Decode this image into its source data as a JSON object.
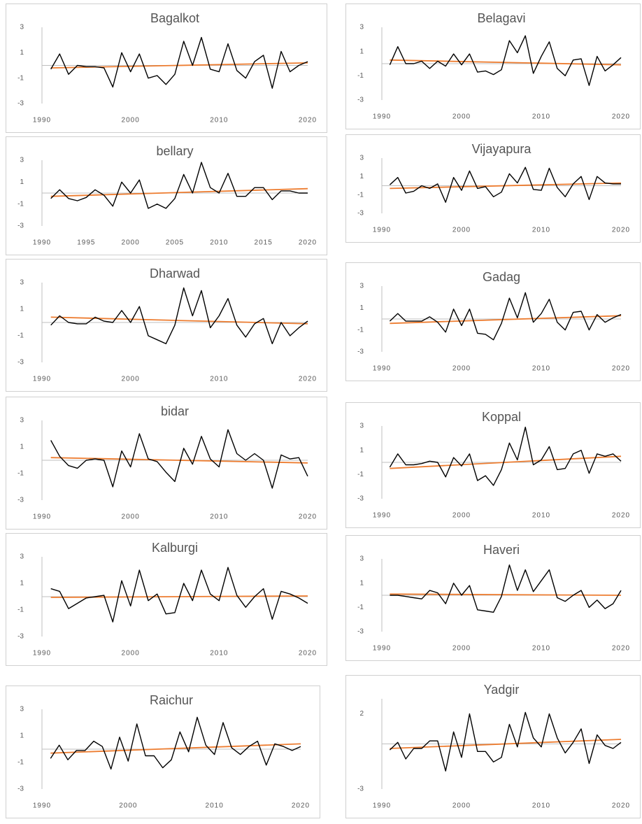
{
  "chart_data": [
    {
      "type": "line",
      "title": "Bagalkot",
      "color": "#000000",
      "x": [
        1991,
        1992,
        1993,
        1994,
        1995,
        1996,
        1997,
        1998,
        1999,
        2000,
        2001,
        2002,
        2003,
        2004,
        2005,
        2006,
        2007,
        2008,
        2009,
        2010,
        2011,
        2012,
        2013,
        2014,
        2015,
        2016,
        2017,
        2018,
        2019,
        2020
      ],
      "values": [
        -0.3,
        0.9,
        -0.7,
        0.0,
        -0.1,
        -0.1,
        -0.2,
        -1.7,
        1.0,
        -0.5,
        0.9,
        -1.0,
        -0.8,
        -1.5,
        -0.7,
        1.9,
        0.0,
        2.2,
        -0.3,
        -0.5,
        1.7,
        -0.4,
        -1.0,
        0.3,
        0.8,
        -1.8,
        1.1,
        -0.5,
        0.0,
        0.3
      ],
      "trend": {
        "color": "#ed7d31",
        "x": [
          1991,
          2020
        ],
        "values": [
          -0.2,
          0.2
        ]
      },
      "xlim": [
        1990,
        2020
      ],
      "ylim": [
        -3,
        3
      ],
      "xticks": [
        1990,
        2000,
        2010,
        2020
      ],
      "yticks": [
        -3,
        -1,
        1,
        3
      ]
    },
    {
      "type": "line",
      "title": "Belagavi",
      "color": "#000000",
      "x": [
        1991,
        1992,
        1993,
        1994,
        1995,
        1996,
        1997,
        1998,
        1999,
        2000,
        2001,
        2002,
        2003,
        2004,
        2005,
        2006,
        2007,
        2008,
        2009,
        2010,
        2011,
        2012,
        2013,
        2014,
        2015,
        2016,
        2017,
        2018,
        2019,
        2020
      ],
      "values": [
        -0.1,
        1.4,
        0.0,
        0.0,
        0.2,
        -0.4,
        0.2,
        -0.2,
        0.8,
        -0.1,
        0.8,
        -0.7,
        -0.6,
        -0.9,
        -0.5,
        1.9,
        0.9,
        2.3,
        -0.8,
        0.6,
        1.8,
        -0.4,
        -1.0,
        0.3,
        0.4,
        -1.8,
        0.6,
        -0.6,
        -0.1,
        0.5
      ],
      "trend": {
        "color": "#ed7d31",
        "x": [
          1991,
          2020
        ],
        "values": [
          0.3,
          -0.1
        ]
      },
      "xlim": [
        1990,
        2020
      ],
      "ylim": [
        -3,
        3
      ],
      "xticks": [
        1990,
        2000,
        2010,
        2020
      ],
      "yticks": [
        -3,
        -1,
        1,
        3
      ]
    },
    {
      "type": "line",
      "title": "bellary",
      "color": "#000000",
      "x": [
        1991,
        1992,
        1993,
        1994,
        1995,
        1996,
        1997,
        1998,
        1999,
        2000,
        2001,
        2002,
        2003,
        2004,
        2005,
        2006,
        2007,
        2008,
        2009,
        2010,
        2011,
        2012,
        2013,
        2014,
        2015,
        2016,
        2017,
        2018,
        2019,
        2020
      ],
      "values": [
        -0.5,
        0.3,
        -0.5,
        -0.7,
        -0.4,
        0.3,
        -0.2,
        -1.2,
        1.0,
        0.0,
        1.2,
        -1.4,
        -1.0,
        -1.4,
        -0.5,
        1.7,
        0.0,
        2.8,
        0.5,
        0.0,
        1.8,
        -0.3,
        -0.3,
        0.5,
        0.5,
        -0.6,
        0.2,
        0.2,
        0.0,
        0.0
      ],
      "trend": {
        "color": "#ed7d31",
        "x": [
          1991,
          2020
        ],
        "values": [
          -0.3,
          0.4
        ]
      },
      "xlim": [
        1990,
        2020
      ],
      "ylim": [
        -3,
        3
      ],
      "xticks": [
        1990,
        1995,
        2000,
        2005,
        2010,
        2015,
        2020
      ],
      "yticks": [
        -3,
        -1,
        1,
        3
      ]
    },
    {
      "type": "line",
      "title": "Vijayapura",
      "color": "#000000",
      "x": [
        1991,
        1992,
        1993,
        1994,
        1995,
        1996,
        1997,
        1998,
        1999,
        2000,
        2001,
        2002,
        2003,
        2004,
        2005,
        2006,
        2007,
        2008,
        2009,
        2010,
        2011,
        2012,
        2013,
        2014,
        2015,
        2016,
        2017,
        2018,
        2019,
        2020
      ],
      "values": [
        0.1,
        0.9,
        -0.8,
        -0.6,
        0.0,
        -0.3,
        0.2,
        -1.8,
        0.9,
        -0.5,
        1.6,
        -0.3,
        -0.1,
        -1.2,
        -0.7,
        1.3,
        0.3,
        2.0,
        -0.4,
        -0.5,
        1.9,
        -0.2,
        -1.2,
        0.2,
        1.0,
        -1.5,
        1.0,
        0.3,
        0.2,
        0.2
      ],
      "trend": {
        "color": "#ed7d31",
        "x": [
          1991,
          2020
        ],
        "values": [
          -0.3,
          0.3
        ]
      },
      "xlim": [
        1990,
        2020
      ],
      "ylim": [
        -3,
        3
      ],
      "xticks": [
        1990,
        2000,
        2010,
        2020
      ],
      "yticks": [
        -3,
        -1,
        1,
        3
      ]
    },
    {
      "type": "line",
      "title": "Dharwad",
      "color": "#000000",
      "x": [
        1991,
        1992,
        1993,
        1994,
        1995,
        1996,
        1997,
        1998,
        1999,
        2000,
        2001,
        2002,
        2003,
        2004,
        2005,
        2006,
        2007,
        2008,
        2009,
        2010,
        2011,
        2012,
        2013,
        2014,
        2015,
        2016,
        2017,
        2018,
        2019,
        2020
      ],
      "values": [
        -0.2,
        0.5,
        0.0,
        -0.1,
        -0.1,
        0.4,
        0.1,
        0.0,
        0.9,
        0.0,
        1.2,
        -1.0,
        -1.3,
        -1.6,
        -0.2,
        2.6,
        0.5,
        2.4,
        -0.4,
        0.5,
        1.8,
        -0.2,
        -1.1,
        -0.1,
        0.3,
        -1.6,
        0.0,
        -1.0,
        -0.4,
        0.1
      ],
      "trend": {
        "color": "#ed7d31",
        "x": [
          1991,
          2020
        ],
        "values": [
          0.4,
          -0.1
        ]
      },
      "xlim": [
        1990,
        2020
      ],
      "ylim": [
        -3,
        3
      ],
      "xticks": [
        1990,
        2000,
        2010,
        2020
      ],
      "yticks": [
        -3,
        -1,
        1,
        3
      ]
    },
    {
      "type": "line",
      "title": "Gadag",
      "color": "#000000",
      "x": [
        1991,
        1992,
        1993,
        1994,
        1995,
        1996,
        1997,
        1998,
        1999,
        2000,
        2001,
        2002,
        2003,
        2004,
        2005,
        2006,
        2007,
        2008,
        2009,
        2010,
        2011,
        2012,
        2013,
        2014,
        2015,
        2016,
        2017,
        2018,
        2019,
        2020
      ],
      "values": [
        -0.2,
        0.5,
        -0.2,
        -0.2,
        -0.2,
        0.2,
        -0.3,
        -1.2,
        0.9,
        -0.6,
        0.9,
        -1.3,
        -1.4,
        -1.9,
        -0.4,
        1.9,
        0.1,
        2.4,
        -0.3,
        0.5,
        1.8,
        -0.3,
        -1.0,
        0.6,
        0.7,
        -1.0,
        0.4,
        -0.3,
        0.1,
        0.4
      ],
      "trend": {
        "color": "#ed7d31",
        "x": [
          1991,
          2020
        ],
        "values": [
          -0.4,
          0.3
        ]
      },
      "xlim": [
        1990,
        2020
      ],
      "ylim": [
        -3,
        3
      ],
      "xticks": [
        1990,
        2000,
        2010,
        2020
      ],
      "yticks": [
        -3,
        -1,
        1,
        3
      ]
    },
    {
      "type": "line",
      "title": "bidar",
      "color": "#000000",
      "x": [
        1991,
        1992,
        1993,
        1994,
        1995,
        1996,
        1997,
        1998,
        1999,
        2000,
        2001,
        2002,
        2003,
        2004,
        2005,
        2006,
        2007,
        2008,
        2009,
        2010,
        2011,
        2012,
        2013,
        2014,
        2015,
        2016,
        2017,
        2018,
        2019,
        2020
      ],
      "values": [
        1.5,
        0.3,
        -0.4,
        -0.6,
        0.0,
        0.1,
        0.0,
        -2.0,
        0.7,
        -0.5,
        2.0,
        0.1,
        -0.1,
        -0.9,
        -1.6,
        0.9,
        -0.3,
        1.8,
        0.1,
        -0.5,
        2.3,
        0.5,
        0.0,
        0.5,
        0.0,
        -2.1,
        0.4,
        0.1,
        0.2,
        -1.2
      ],
      "trend": {
        "color": "#ed7d31",
        "x": [
          1991,
          2020
        ],
        "values": [
          0.2,
          -0.2
        ]
      },
      "xlim": [
        1990,
        2020
      ],
      "ylim": [
        -3,
        3
      ],
      "xticks": [
        1990,
        2000,
        2010,
        2020
      ],
      "yticks": [
        -3,
        -1,
        1,
        3
      ]
    },
    {
      "type": "line",
      "title": "Koppal",
      "color": "#000000",
      "x": [
        1991,
        1992,
        1993,
        1994,
        1995,
        1996,
        1997,
        1998,
        1999,
        2000,
        2001,
        2002,
        2003,
        2004,
        2005,
        2006,
        2007,
        2008,
        2009,
        2010,
        2011,
        2012,
        2013,
        2014,
        2015,
        2016,
        2017,
        2018,
        2019,
        2020
      ],
      "values": [
        -0.4,
        0.7,
        -0.2,
        -0.2,
        -0.1,
        0.1,
        0.0,
        -1.2,
        0.4,
        -0.3,
        0.7,
        -1.5,
        -1.1,
        -1.9,
        -0.6,
        1.6,
        0.2,
        2.9,
        -0.2,
        0.2,
        1.3,
        -0.6,
        -0.5,
        0.7,
        1.0,
        -0.9,
        0.7,
        0.5,
        0.7,
        0.1
      ],
      "trend": {
        "color": "#ed7d31",
        "x": [
          1991,
          2020
        ],
        "values": [
          -0.5,
          0.5
        ]
      },
      "xlim": [
        1990,
        2020
      ],
      "ylim": [
        -3,
        3
      ],
      "xticks": [
        1990,
        2000,
        2010,
        2020
      ],
      "yticks": [
        -3,
        -1,
        1,
        3
      ]
    },
    {
      "type": "line",
      "title": "Kalburgi",
      "color": "#000000",
      "x": [
        1991,
        1992,
        1993,
        1994,
        1995,
        1996,
        1997,
        1998,
        1999,
        2000,
        2001,
        2002,
        2003,
        2004,
        2005,
        2006,
        2007,
        2008,
        2009,
        2010,
        2011,
        2012,
        2013,
        2014,
        2015,
        2016,
        2017,
        2018,
        2019,
        2020
      ],
      "values": [
        0.6,
        0.4,
        -0.9,
        -0.5,
        -0.1,
        0.0,
        0.1,
        -1.9,
        1.2,
        -0.7,
        2.0,
        -0.3,
        0.2,
        -1.3,
        -1.2,
        1.0,
        -0.3,
        2.0,
        0.2,
        -0.3,
        2.2,
        0.1,
        -0.8,
        0.0,
        0.6,
        -1.7,
        0.4,
        0.2,
        -0.1,
        -0.5
      ],
      "trend": {
        "color": "#ed7d31",
        "x": [
          1991,
          2020
        ],
        "values": [
          -0.05,
          0.05
        ]
      },
      "xlim": [
        1990,
        2020
      ],
      "ylim": [
        -3,
        3
      ],
      "xticks": [
        1990,
        2000,
        2010,
        2020
      ],
      "yticks": [
        -3,
        -1,
        1,
        3
      ]
    },
    {
      "type": "line",
      "title": "Haveri",
      "color": "#000000",
      "x": [
        1991,
        1992,
        1993,
        1994,
        1995,
        1996,
        1997,
        1998,
        1999,
        2000,
        2001,
        2002,
        2003,
        2004,
        2005,
        2006,
        2007,
        2008,
        2009,
        2010,
        2011,
        2012,
        2013,
        2014,
        2015,
        2016,
        2017,
        2018,
        2019,
        2020
      ],
      "values": [
        0.0,
        0.0,
        -0.1,
        -0.2,
        -0.3,
        0.4,
        0.2,
        -0.7,
        1.0,
        0.0,
        0.8,
        -1.2,
        -1.3,
        -1.4,
        -0.1,
        2.5,
        0.4,
        2.1,
        0.3,
        1.2,
        2.1,
        -0.2,
        -0.5,
        0.0,
        0.4,
        -1.0,
        -0.4,
        -1.1,
        -0.7,
        0.4
      ],
      "trend": {
        "color": "#ed7d31",
        "x": [
          1991,
          2020
        ],
        "values": [
          0.1,
          0.0
        ]
      },
      "xlim": [
        1990,
        2020
      ],
      "ylim": [
        -3,
        3
      ],
      "xticks": [
        1990,
        2000,
        2010,
        2020
      ],
      "yticks": [
        -3,
        -1,
        1,
        3
      ]
    },
    {
      "type": "line",
      "title": "Raichur",
      "color": "#000000",
      "x": [
        1991,
        1992,
        1993,
        1994,
        1995,
        1996,
        1997,
        1998,
        1999,
        2000,
        2001,
        2002,
        2003,
        2004,
        2005,
        2006,
        2007,
        2008,
        2009,
        2010,
        2011,
        2012,
        2013,
        2014,
        2015,
        2016,
        2017,
        2018,
        2019,
        2020
      ],
      "values": [
        -0.7,
        0.3,
        -0.8,
        -0.1,
        -0.1,
        0.6,
        0.2,
        -1.5,
        0.9,
        -0.9,
        1.9,
        -0.5,
        -0.5,
        -1.4,
        -0.8,
        1.3,
        -0.2,
        2.4,
        0.3,
        -0.4,
        2.0,
        0.1,
        -0.4,
        0.2,
        0.6,
        -1.2,
        0.4,
        0.2,
        -0.1,
        0.2
      ],
      "trend": {
        "color": "#ed7d31",
        "x": [
          1991,
          2020
        ],
        "values": [
          -0.3,
          0.4
        ]
      },
      "xlim": [
        1990,
        2020
      ],
      "ylim": [
        -3,
        3
      ],
      "xticks": [
        1990,
        2000,
        2010,
        2020
      ],
      "yticks": [
        -3,
        -1,
        1,
        3
      ]
    },
    {
      "type": "line",
      "title": "Yadgir",
      "color": "#000000",
      "x": [
        1991,
        1992,
        1993,
        1994,
        1995,
        1996,
        1997,
        1998,
        1999,
        2000,
        2001,
        2002,
        2003,
        2004,
        2005,
        2006,
        2007,
        2008,
        2009,
        2010,
        2011,
        2012,
        2013,
        2014,
        2015,
        2016,
        2017,
        2018,
        2019,
        2020
      ],
      "values": [
        -0.4,
        0.1,
        -1.0,
        -0.3,
        -0.3,
        0.2,
        0.2,
        -1.8,
        0.8,
        -0.9,
        2.0,
        -0.5,
        -0.5,
        -1.2,
        -0.9,
        1.3,
        -0.2,
        2.1,
        0.4,
        -0.2,
        2.0,
        0.4,
        -0.6,
        0.1,
        1.0,
        -1.3,
        0.6,
        -0.1,
        -0.3,
        0.1
      ],
      "trend": {
        "color": "#ed7d31",
        "x": [
          1991,
          2020
        ],
        "values": [
          -0.3,
          0.3
        ]
      },
      "xlim": [
        1990,
        2020
      ],
      "ylim": [
        -3,
        3
      ],
      "xticks": [
        1990,
        2000,
        2010,
        2020
      ],
      "yticks": [
        -3,
        2
      ]
    }
  ]
}
